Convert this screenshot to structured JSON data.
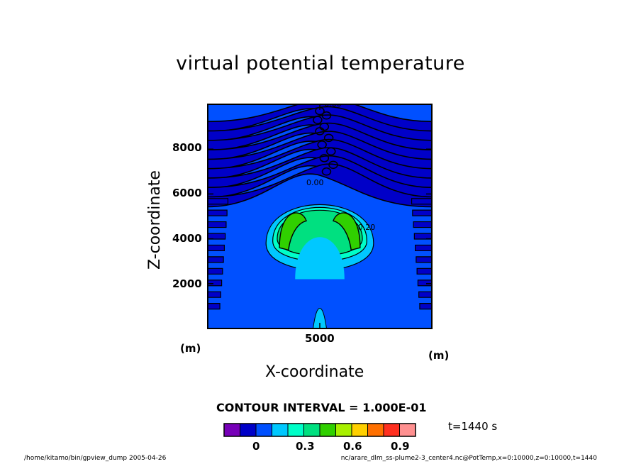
{
  "chart_data": {
    "type": "contour",
    "title": "virtual potential temperature",
    "xlabel": "X-coordinate",
    "ylabel": "Z-coordinate",
    "x_unit": "(m)",
    "y_unit": "(m)",
    "xlim": [
      0,
      10000
    ],
    "ylim": [
      0,
      10000
    ],
    "x_ticks": [
      5000
    ],
    "y_ticks": [
      2000,
      4000,
      6000,
      8000
    ],
    "contour_interval_label": "CONTOUR INTERVAL = 1.000E-01",
    "contour_labels": [
      "0.00",
      "0.00",
      "0.20"
    ],
    "colorbar": {
      "colors": [
        "#7700b8",
        "#0000c8",
        "#0050ff",
        "#00c8ff",
        "#00ffc8",
        "#00e080",
        "#30d000",
        "#a8f000",
        "#ffd000",
        "#ff7000",
        "#ff3020",
        "#ff9090"
      ],
      "tick_labels": [
        "0",
        "0.3",
        "0.6",
        "0.9"
      ],
      "tick_values": [
        0,
        0.3,
        0.6,
        0.9
      ]
    },
    "time_label": "t=1440 s"
  },
  "footer": {
    "left": "/home/kitamo/bin/gpview_dump  2005-04-26",
    "right": "nc/arare_dlm_ss-plume2-3_center4.nc@PotTemp,x=0:10000,z=0:10000,t=1440"
  }
}
